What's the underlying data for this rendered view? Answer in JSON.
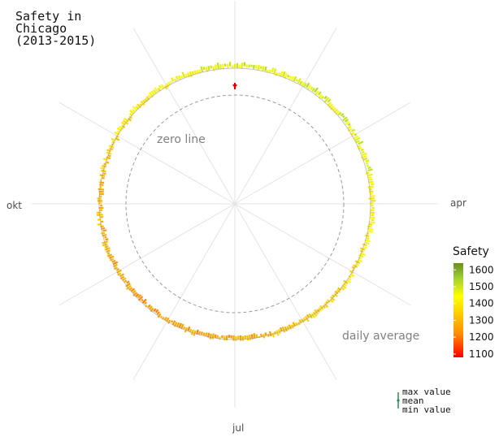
{
  "chart_data": {
    "type": "radial-bar",
    "title_lines": [
      "Safety in",
      "Chicago",
      "(2013-2015)"
    ],
    "angular_axis": {
      "labels": [
        "apr",
        "jul",
        "okt"
      ],
      "label_days": [
        91,
        182,
        274
      ],
      "start_day": 1,
      "days_in_year": 365,
      "direction": "clockwise"
    },
    "radial_axis": {
      "zero_line_value": 0,
      "daily_average_value": 1350
    },
    "annotations": {
      "zero_line": "zero line",
      "daily_average": "daily average"
    },
    "color_scale": {
      "title": "Safety",
      "ticks": [
        1600,
        1500,
        1400,
        1300,
        1200,
        1100
      ],
      "min": 1080,
      "max": 1640,
      "stops": [
        "#ff0000",
        "#ff8c00",
        "#ffd700",
        "#ffff00",
        "#9acd32",
        "#6b8e23"
      ]
    },
    "key": {
      "labels": [
        "max value",
        "mean",
        "min value"
      ]
    },
    "series_summary": {
      "min_mean_day": 1,
      "min_mean_value": 1130
    }
  }
}
